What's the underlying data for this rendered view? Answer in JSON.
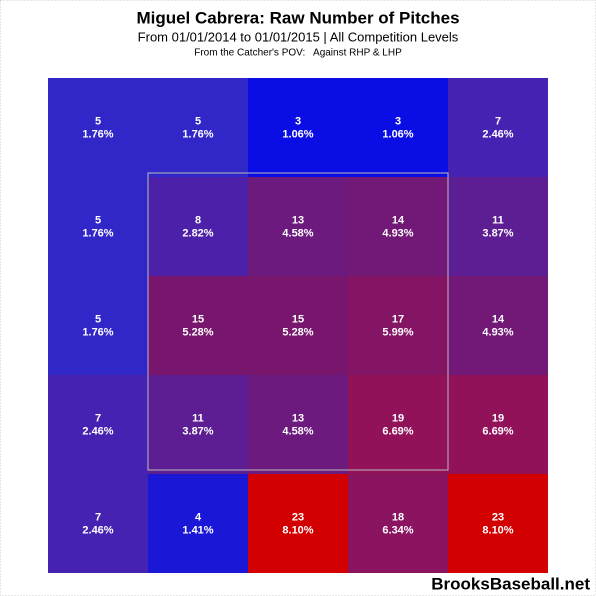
{
  "chart_data": {
    "type": "heatmap",
    "title": "Miguel Cabrera: Raw Number of Pitches",
    "subtitle": "From 01/01/2014 to 01/01/2015 | All Competition Levels",
    "note": "From the Catcher's POV:   Against RHP & LHP",
    "watermark": "BrooksBaseball.net",
    "rows": [
      [
        {
          "count": 5,
          "percent": 1.76,
          "percent_label": "1.76%",
          "color": "#3126c8"
        },
        {
          "count": 5,
          "percent": 1.76,
          "percent_label": "1.76%",
          "color": "#3126c8"
        },
        {
          "count": 3,
          "percent": 1.06,
          "percent_label": "1.06%",
          "color": "#0a0ee4"
        },
        {
          "count": 3,
          "percent": 1.06,
          "percent_label": "1.06%",
          "color": "#0a0ee4"
        },
        {
          "count": 7,
          "percent": 2.46,
          "percent_label": "2.46%",
          "color": "#4622b2"
        }
      ],
      [
        {
          "count": 5,
          "percent": 1.76,
          "percent_label": "1.76%",
          "color": "#3126c8"
        },
        {
          "count": 8,
          "percent": 2.82,
          "percent_label": "2.82%",
          "color": "#4c20a8"
        },
        {
          "count": 13,
          "percent": 4.58,
          "percent_label": "4.58%",
          "color": "#6c1a7e"
        },
        {
          "count": 14,
          "percent": 4.93,
          "percent_label": "4.93%",
          "color": "#721876"
        },
        {
          "count": 11,
          "percent": 3.87,
          "percent_label": "3.87%",
          "color": "#5c1e92"
        }
      ],
      [
        {
          "count": 5,
          "percent": 1.76,
          "percent_label": "1.76%",
          "color": "#3126c8"
        },
        {
          "count": 15,
          "percent": 5.28,
          "percent_label": "5.28%",
          "color": "#78166e"
        },
        {
          "count": 15,
          "percent": 5.28,
          "percent_label": "5.28%",
          "color": "#78166e"
        },
        {
          "count": 17,
          "percent": 5.99,
          "percent_label": "5.99%",
          "color": "#841464"
        },
        {
          "count": 14,
          "percent": 4.93,
          "percent_label": "4.93%",
          "color": "#721876"
        }
      ],
      [
        {
          "count": 7,
          "percent": 2.46,
          "percent_label": "2.46%",
          "color": "#4622b2"
        },
        {
          "count": 11,
          "percent": 3.87,
          "percent_label": "3.87%",
          "color": "#5c1e92"
        },
        {
          "count": 13,
          "percent": 4.58,
          "percent_label": "4.58%",
          "color": "#6c1a7e"
        },
        {
          "count": 19,
          "percent": 6.69,
          "percent_label": "6.69%",
          "color": "#92125a"
        },
        {
          "count": 19,
          "percent": 6.69,
          "percent_label": "6.69%",
          "color": "#92125a"
        }
      ],
      [
        {
          "count": 7,
          "percent": 2.46,
          "percent_label": "2.46%",
          "color": "#4622b2"
        },
        {
          "count": 4,
          "percent": 1.41,
          "percent_label": "1.41%",
          "color": "#1a18d6"
        },
        {
          "count": 23,
          "percent": 8.1,
          "percent_label": "8.10%",
          "color": "#d20000"
        },
        {
          "count": 18,
          "percent": 6.34,
          "percent_label": "6.34%",
          "color": "#8a1460"
        },
        {
          "count": 23,
          "percent": 8.1,
          "percent_label": "8.10%",
          "color": "#d20000"
        }
      ]
    ]
  }
}
